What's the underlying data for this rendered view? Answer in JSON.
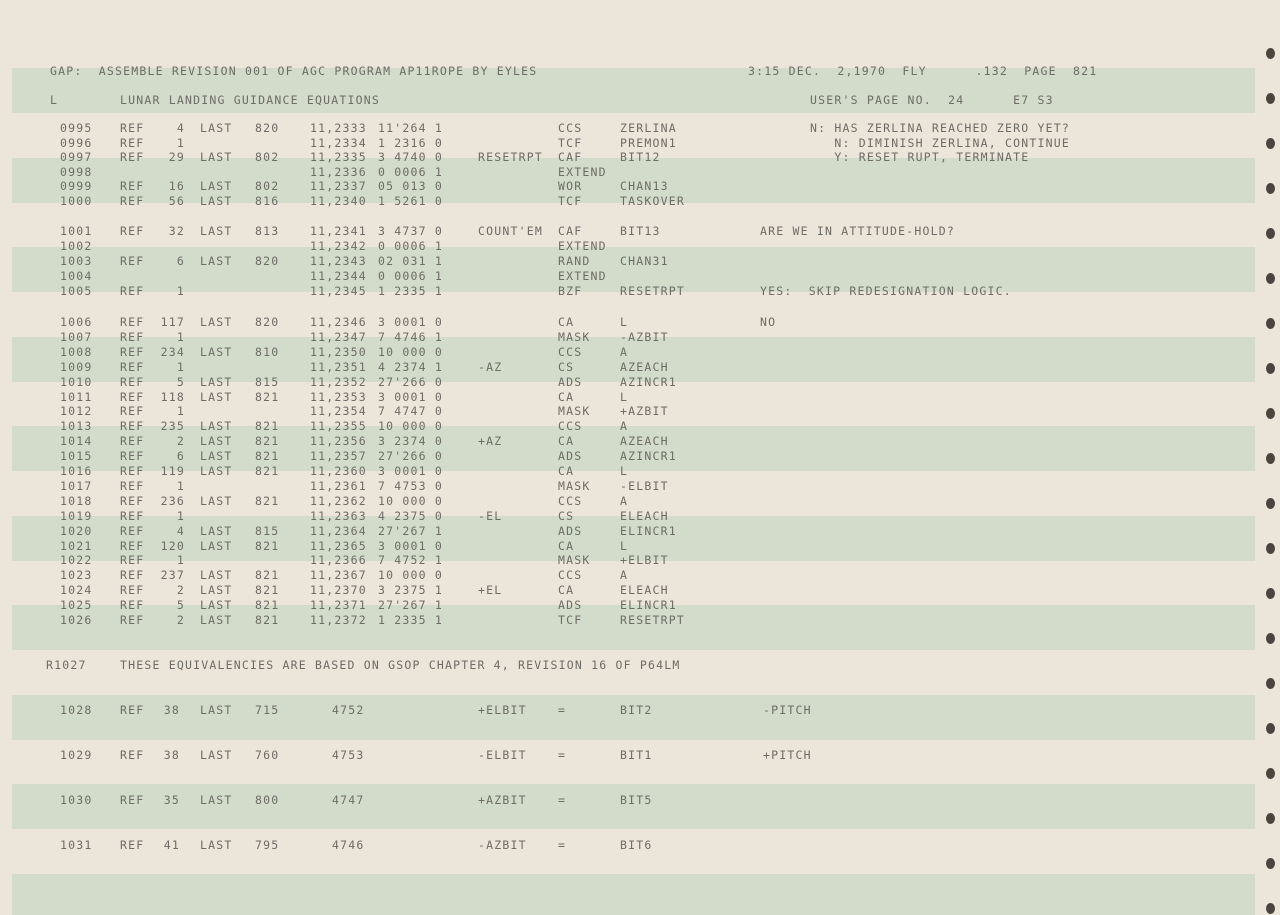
{
  "header": {
    "left": "GAP:  ASSEMBLE REVISION 001 OF AGC PROGRAM AP11ROPE BY EYLES",
    "right": "3:15 DEC.  2,1970  FLY      .132  PAGE  821"
  },
  "subheader": {
    "mark": "L",
    "title": "LUNAR LANDING GUIDANCE EQUATIONS",
    "right": "USER'S PAGE NO.  24      E7 S3"
  },
  "rows": [
    [
      "0995",
      "REF",
      "4",
      "LAST",
      "820",
      "11,2333",
      "11'264 1",
      "",
      "CCS",
      "ZERLINA",
      "N: HAS ZERLINA REACHED ZERO YET?"
    ],
    [
      "0996",
      "REF",
      "1",
      "",
      "",
      "11,2334",
      "1 2316 0",
      "",
      "TCF",
      "PREMON1",
      "   N: DIMINISH ZERLINA, CONTINUE"
    ],
    [
      "0997",
      "REF",
      "29",
      "LAST",
      "802",
      "11,2335",
      "3 4740 0",
      "RESETRPT",
      "CAF",
      "BIT12",
      "   Y: RESET RUPT, TERMINATE"
    ],
    [
      "0998",
      "",
      "",
      "",
      "",
      "11,2336",
      "0 0006 1",
      "",
      "EXTEND",
      "",
      ""
    ],
    [
      "0999",
      "REF",
      "16",
      "LAST",
      "802",
      "11,2337",
      "05 013 0",
      "",
      "WOR",
      "CHAN13",
      ""
    ],
    [
      "1000",
      "REF",
      "56",
      "LAST",
      "816",
      "11,2340",
      "1 5261 0",
      "",
      "TCF",
      "TASKOVER",
      ""
    ],
    [
      "1001",
      "REF",
      "32",
      "LAST",
      "813",
      "11,2341",
      "3 4737 0",
      "COUNT'EM",
      "CAF",
      "BIT13",
      "ARE WE IN ATTITUDE-HOLD?"
    ],
    [
      "1002",
      "",
      "",
      "",
      "",
      "11,2342",
      "0 0006 1",
      "",
      "EXTEND",
      "",
      ""
    ],
    [
      "1003",
      "REF",
      "6",
      "LAST",
      "820",
      "11,2343",
      "02 031 1",
      "",
      "RAND",
      "CHAN31",
      ""
    ],
    [
      "1004",
      "",
      "",
      "",
      "",
      "11,2344",
      "0 0006 1",
      "",
      "EXTEND",
      "",
      ""
    ],
    [
      "1005",
      "REF",
      "1",
      "",
      "",
      "11,2345",
      "1 2335 1",
      "",
      "BZF",
      "RESETRPT",
      "YES:  SKIP REDESIGNATION LOGIC."
    ],
    [
      "1006",
      "REF",
      "117",
      "LAST",
      "820",
      "11,2346",
      "3 0001 0",
      "",
      "CA",
      "L",
      "NO"
    ],
    [
      "1007",
      "REF",
      "1",
      "",
      "",
      "11,2347",
      "7 4746 1",
      "",
      "MASK",
      "-AZBIT",
      ""
    ],
    [
      "1008",
      "REF",
      "234",
      "LAST",
      "810",
      "11,2350",
      "10 000 0",
      "",
      "CCS",
      "A",
      ""
    ],
    [
      "1009",
      "REF",
      "1",
      "",
      "",
      "11,2351",
      "4 2374 1",
      "-AZ",
      "CS",
      "AZEACH",
      ""
    ],
    [
      "1010",
      "REF",
      "5",
      "LAST",
      "815",
      "11,2352",
      "27'266 0",
      "",
      "ADS",
      "AZINCR1",
      ""
    ],
    [
      "1011",
      "REF",
      "118",
      "LAST",
      "821",
      "11,2353",
      "3 0001 0",
      "",
      "CA",
      "L",
      ""
    ],
    [
      "1012",
      "REF",
      "1",
      "",
      "",
      "11,2354",
      "7 4747 0",
      "",
      "MASK",
      "+AZBIT",
      ""
    ],
    [
      "1013",
      "REF",
      "235",
      "LAST",
      "821",
      "11,2355",
      "10 000 0",
      "",
      "CCS",
      "A",
      ""
    ],
    [
      "1014",
      "REF",
      "2",
      "LAST",
      "821",
      "11,2356",
      "3 2374 0",
      "+AZ",
      "CA",
      "AZEACH",
      ""
    ],
    [
      "1015",
      "REF",
      "6",
      "LAST",
      "821",
      "11,2357",
      "27'266 0",
      "",
      "ADS",
      "AZINCR1",
      ""
    ],
    [
      "1016",
      "REF",
      "119",
      "LAST",
      "821",
      "11,2360",
      "3 0001 0",
      "",
      "CA",
      "L",
      ""
    ],
    [
      "1017",
      "REF",
      "1",
      "",
      "",
      "11,2361",
      "7 4753 0",
      "",
      "MASK",
      "-ELBIT",
      ""
    ],
    [
      "1018",
      "REF",
      "236",
      "LAST",
      "821",
      "11,2362",
      "10 000 0",
      "",
      "CCS",
      "A",
      ""
    ],
    [
      "1019",
      "REF",
      "1",
      "",
      "",
      "11,2363",
      "4 2375 0",
      "-EL",
      "CS",
      "ELEACH",
      ""
    ],
    [
      "1020",
      "REF",
      "4",
      "LAST",
      "815",
      "11,2364",
      "27'267 1",
      "",
      "ADS",
      "ELINCR1",
      ""
    ],
    [
      "1021",
      "REF",
      "120",
      "LAST",
      "821",
      "11,2365",
      "3 0001 0",
      "",
      "CA",
      "L",
      ""
    ],
    [
      "1022",
      "REF",
      "1",
      "",
      "",
      "11,2366",
      "7 4752 1",
      "",
      "MASK",
      "+ELBIT",
      ""
    ],
    [
      "1023",
      "REF",
      "237",
      "LAST",
      "821",
      "11,2367",
      "10 000 0",
      "",
      "CCS",
      "A",
      ""
    ],
    [
      "1024",
      "REF",
      "2",
      "LAST",
      "821",
      "11,2370",
      "3 2375 1",
      "+EL",
      "CA",
      "ELEACH",
      ""
    ],
    [
      "1025",
      "REF",
      "5",
      "LAST",
      "821",
      "11,2371",
      "27'267 1",
      "",
      "ADS",
      "ELINCR1",
      ""
    ],
    [
      "1026",
      "REF",
      "2",
      "LAST",
      "821",
      "11,2372",
      "1 2335 1",
      "",
      "TCF",
      "RESETRPT",
      ""
    ]
  ],
  "remark": {
    "line": "R1027",
    "text": "THESE EQUIVALENCIES ARE BASED ON GSOP CHAPTER 4, REVISION 16 OF P64LM"
  },
  "equates": [
    [
      "1028",
      "REF",
      "38",
      "LAST",
      "715",
      "4752",
      "+ELBIT",
      "=",
      "BIT2",
      "-PITCH"
    ],
    [
      "1029",
      "REF",
      "38",
      "LAST",
      "760",
      "4753",
      "-ELBIT",
      "=",
      "BIT1",
      "+PITCH"
    ],
    [
      "1030",
      "REF",
      "35",
      "LAST",
      "800",
      "4747",
      "+AZBIT",
      "=",
      "BIT5",
      ""
    ],
    [
      "1031",
      "REF",
      "41",
      "LAST",
      "795",
      "4746",
      "-AZBIT",
      "=",
      "BIT6",
      ""
    ]
  ]
}
